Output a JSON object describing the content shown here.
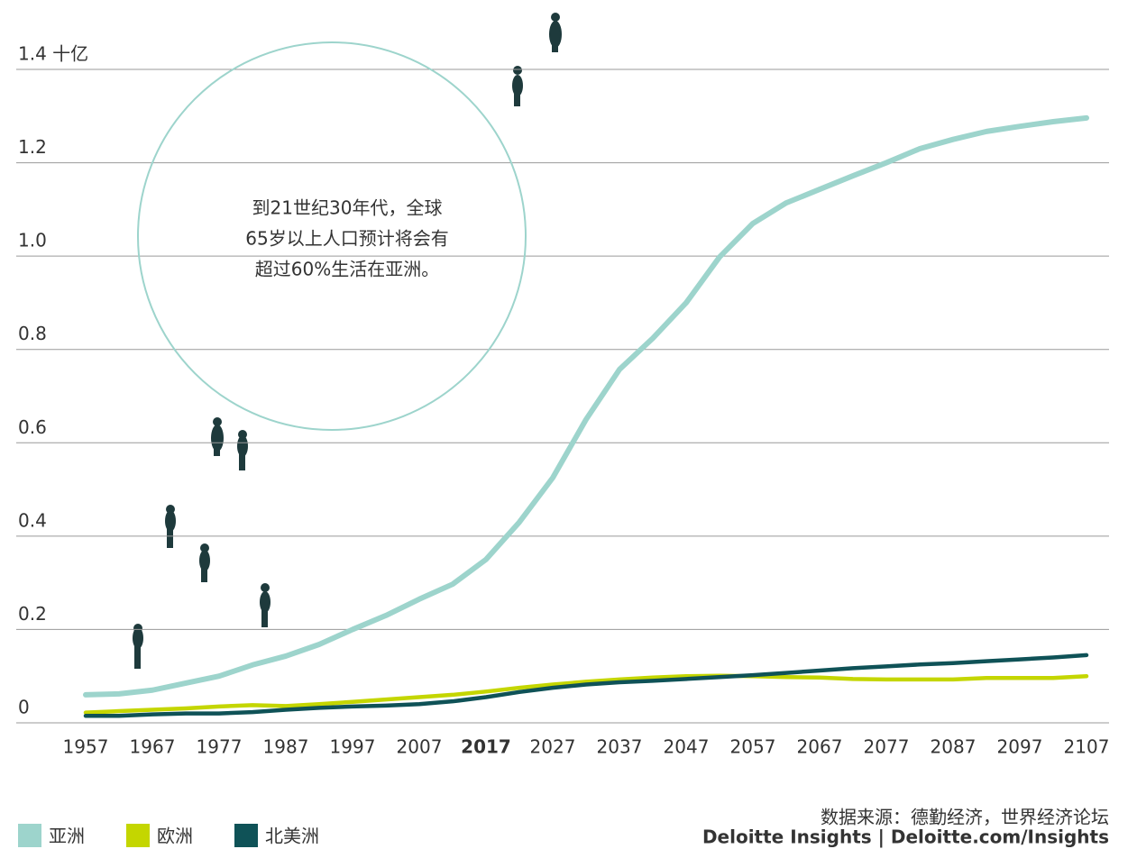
{
  "chart_data": {
    "type": "line",
    "annotation": [
      "到21世纪30年代，全球",
      "65岁以上人口预计将会有",
      "超过60%生活在亚洲。"
    ],
    "source": [
      "数据来源：德勤经济，世界经济论坛",
      "Deloitte Insights | Deloitte.com/Insights"
    ],
    "x": [
      1957,
      1962,
      1967,
      1972,
      1977,
      1982,
      1987,
      1992,
      1997,
      2002,
      2007,
      2012,
      2017,
      2022,
      2027,
      2032,
      2037,
      2042,
      2047,
      2052,
      2057,
      2062,
      2067,
      2072,
      2077,
      2082,
      2087,
      2092,
      2097,
      2102,
      2107
    ],
    "series": [
      {
        "name": "亚洲",
        "color": "#9dd4cc",
        "values": [
          0.06,
          0.062,
          0.07,
          0.085,
          0.1,
          0.124,
          0.143,
          0.168,
          0.2,
          0.23,
          0.265,
          0.297,
          0.35,
          0.43,
          0.525,
          0.65,
          0.757,
          0.824,
          0.9,
          0.998,
          1.07,
          1.114,
          1.143,
          1.172,
          1.2,
          1.23,
          1.25,
          1.267,
          1.278,
          1.288,
          1.296
        ]
      },
      {
        "name": "欧洲",
        "color": "#c4d600",
        "values": [
          0.022,
          0.025,
          0.028,
          0.031,
          0.035,
          0.038,
          0.036,
          0.04,
          0.045,
          0.05,
          0.055,
          0.06,
          0.067,
          0.075,
          0.082,
          0.088,
          0.093,
          0.097,
          0.1,
          0.101,
          0.1,
          0.098,
          0.097,
          0.094,
          0.093,
          0.093,
          0.093,
          0.096,
          0.096,
          0.096,
          0.1
        ]
      },
      {
        "name": "北美洲",
        "color": "#0f5257",
        "values": [
          0.015,
          0.015,
          0.018,
          0.02,
          0.02,
          0.023,
          0.028,
          0.032,
          0.035,
          0.037,
          0.04,
          0.046,
          0.055,
          0.066,
          0.075,
          0.082,
          0.087,
          0.09,
          0.094,
          0.098,
          0.102,
          0.107,
          0.112,
          0.117,
          0.121,
          0.125,
          0.128,
          0.132,
          0.136,
          0.14,
          0.145
        ]
      }
    ],
    "xlim": [
      1957,
      2107
    ],
    "xticks": [
      1957,
      1967,
      1977,
      1987,
      1997,
      2007,
      2017,
      2027,
      2037,
      2047,
      2057,
      2067,
      2077,
      2087,
      2097,
      2107
    ],
    "bold_xtick": 2017,
    "ylim": [
      0,
      1.4
    ],
    "yticks": [
      0,
      0.2,
      0.4,
      0.6,
      0.8,
      {
        "value": 1.0,
        "label": "1.0"
      },
      1.2,
      {
        "value": 1.4,
        "label": "1.4 十亿"
      }
    ],
    "grid": true,
    "legend": "bottom-left"
  }
}
